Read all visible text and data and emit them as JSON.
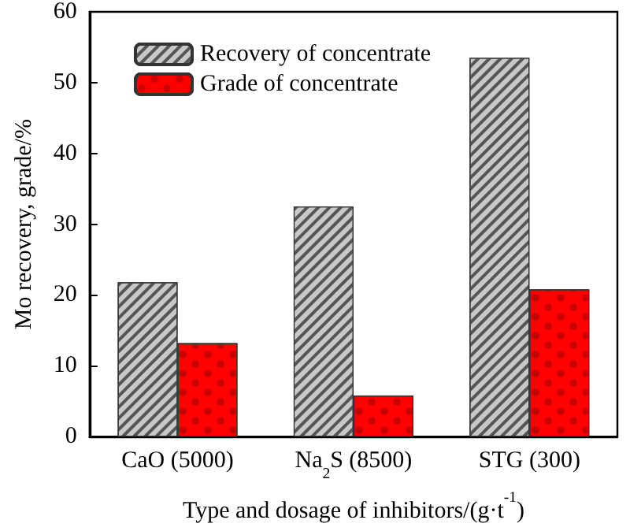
{
  "chart_data": {
    "type": "bar",
    "xlabel": "Type and dosage of inhibitors/(g·t$^{-1}$)",
    "ylabel": "Mo recovery, grade/%",
    "categories": [
      "CaO (5000)",
      "Na$_{2}$S (8500)",
      "STG (300)"
    ],
    "series": [
      {
        "name": "Recovery of concentrate",
        "color": "#c8c8c8",
        "values": [
          21.8,
          32.5,
          53.5
        ]
      },
      {
        "name": "Grade of concentrate",
        "color": "#ff0000",
        "values": [
          13.2,
          5.8,
          20.8
        ]
      }
    ],
    "ylim": [
      0,
      60
    ],
    "yticks": [
      0,
      10,
      20,
      30,
      40,
      50,
      60
    ],
    "grid": false,
    "legend": "top left"
  }
}
